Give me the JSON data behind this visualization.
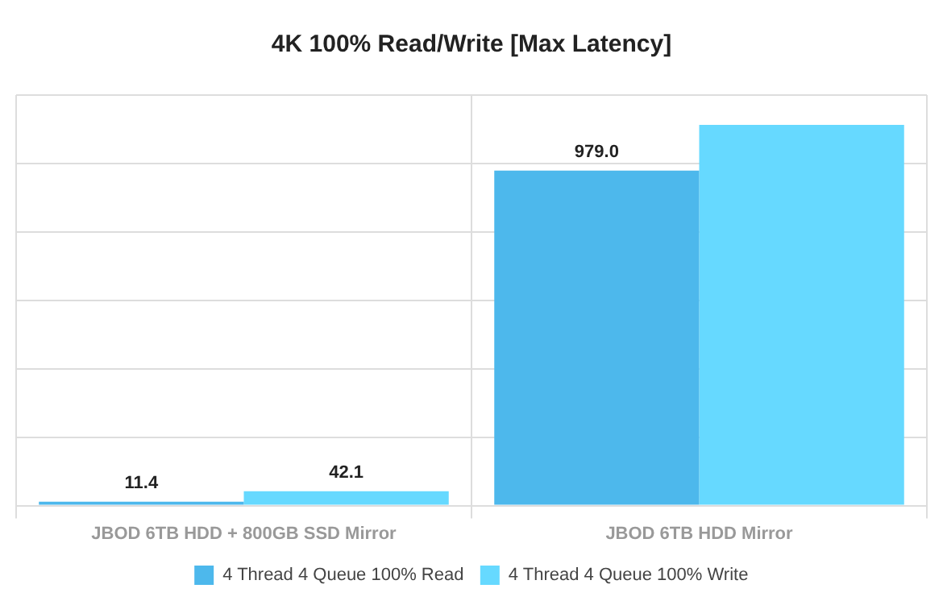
{
  "chart_data": {
    "type": "bar",
    "title": "4K 100% Read/Write [Max Latency]",
    "categories": [
      "JBOD 6TB HDD + 800GB SSD Mirror",
      "JBOD 6TB HDD Mirror"
    ],
    "tick_labels": "x",
    "grid": true,
    "legend": "bottom",
    "series": [
      {
        "name": "4 Thread 4 Queue 100% Read",
        "color": "#4db8ec",
        "values": [
          11.4,
          979.0
        ],
        "value_labels": [
          "11.4",
          "979.0"
        ]
      },
      {
        "name": "4 Thread 4 Queue 100% Write",
        "color": "#66d9ff",
        "values": [
          42.1,
          1113
        ],
        "value_labels": [
          "42.1",
          null
        ]
      }
    ]
  }
}
